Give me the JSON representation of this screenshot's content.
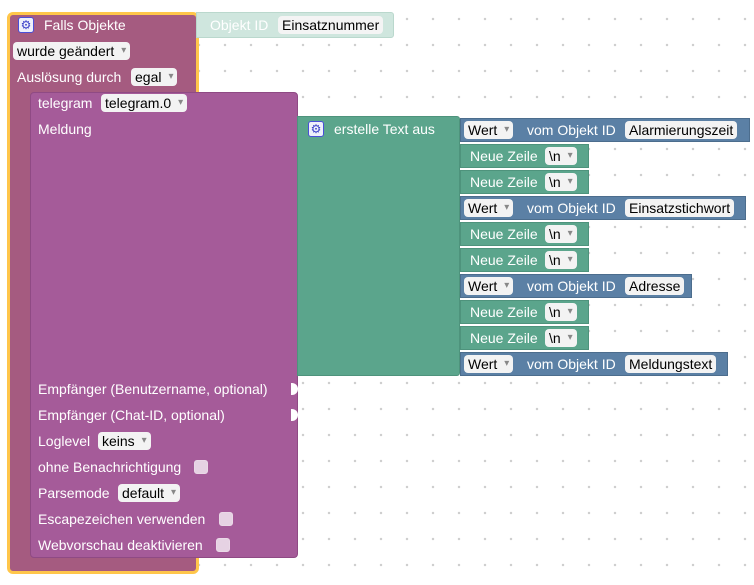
{
  "trigger": {
    "title": "Falls Objekte",
    "event": "wurde geändert",
    "auslosung_label": "Auslösung durch",
    "auslosung_value": "egal",
    "objekt_label": "Objekt ID",
    "objekt_value": "Einsatznummer"
  },
  "telegram": {
    "label": "telegram",
    "instance": "telegram.0",
    "meldung_label": "Meldung",
    "empf_user": "Empfänger (Benutzername, optional)",
    "empf_chat": "Empfänger (Chat-ID, optional)",
    "loglevel_label": "Loglevel",
    "loglevel_value": "keins",
    "ohne_label": "ohne Benachrichtigung",
    "parse_label": "Parsemode",
    "parse_value": "default",
    "escape_label": "Escapezeichen verwenden",
    "webvor_label": "Webvorschau deaktivieren"
  },
  "text_block": {
    "title": "erstelle Text aus",
    "wert_label": "Wert",
    "vom_label": "vom Objekt ID",
    "newline_label": "Neue Zeile",
    "newline_value": "\\n",
    "obj1": "Alarmierungszeit",
    "obj2": "Einsatzstichwort",
    "obj3": "Adresse",
    "obj4": "Meldungstext"
  },
  "colors": {
    "trigger": "#a55b80",
    "trigger_outline": "#ffc64a",
    "telegram": "#a55b99",
    "text_green": "#5ba58c",
    "value_blue": "#5b80a5"
  }
}
